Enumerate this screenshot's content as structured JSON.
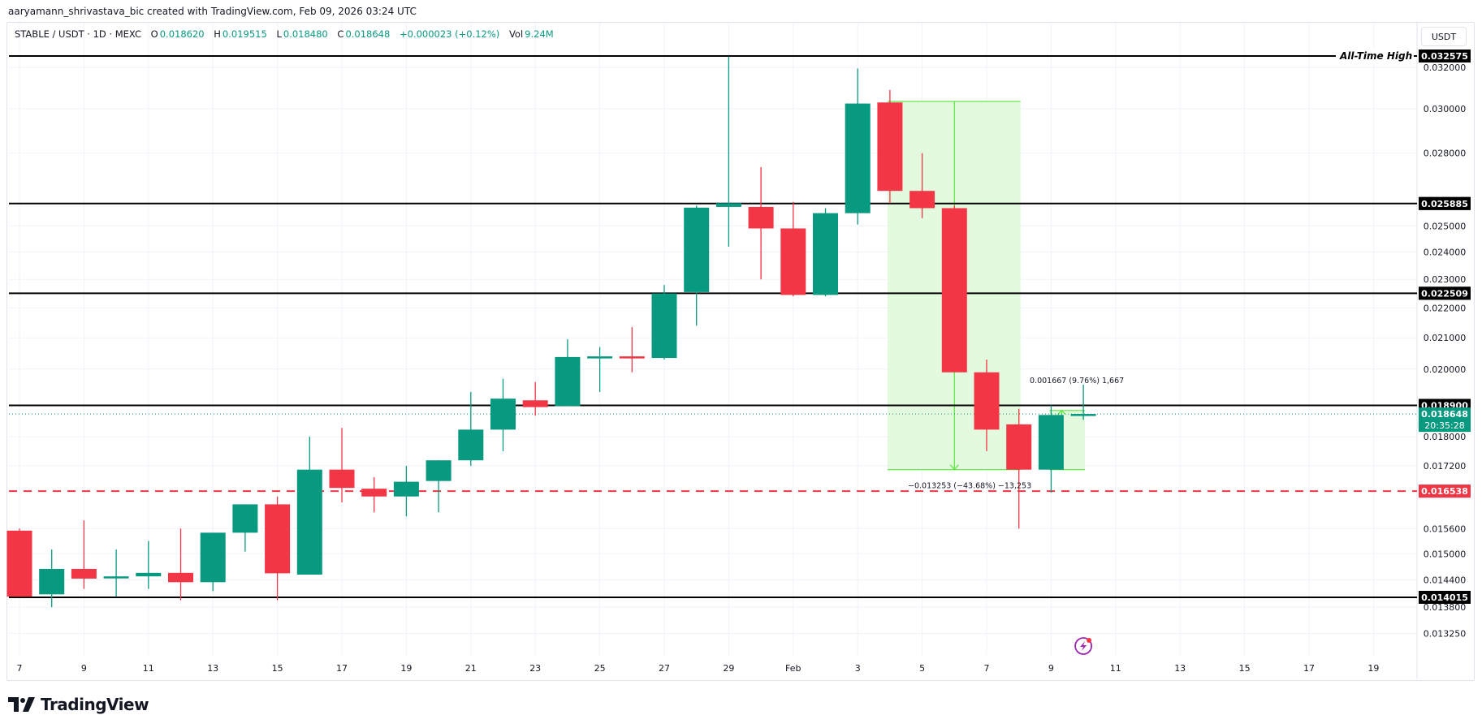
{
  "credit": "aaryamann_shrivastava_bic created with TradingView.com, Feb 09, 2026 03:24 UTC",
  "legend": {
    "symbol": "STABLE / USDT · 1D · MEXC",
    "o_label": "O",
    "o_value": "0.018620",
    "h_label": "H",
    "h_value": "0.019515",
    "l_label": "L",
    "l_value": "0.018480",
    "c_label": "C",
    "c_value": "0.018648",
    "change": "+0.000023 (+0.12%)",
    "vol_label": "Vol",
    "vol_value": "9.24M"
  },
  "price_axis": {
    "unit": "USDT",
    "ticks": [
      "0.032000",
      "0.030000",
      "0.028000",
      "0.025000",
      "0.024000",
      "0.023000",
      "0.022000",
      "0.021000",
      "0.020000",
      "0.018000",
      "0.017200",
      "0.015600",
      "0.015000",
      "0.014400",
      "0.013800",
      "0.013250"
    ]
  },
  "time_axis": {
    "ticks": [
      "7",
      "9",
      "11",
      "13",
      "15",
      "17",
      "19",
      "21",
      "23",
      "25",
      "27",
      "29",
      "Feb",
      "3",
      "5",
      "7",
      "9",
      "11",
      "13",
      "15",
      "17",
      "19"
    ]
  },
  "levels": [
    {
      "price": "0.032575",
      "label": "All-Time High",
      "style": "solid",
      "color": "#000000"
    },
    {
      "price": "0.025885",
      "style": "solid",
      "color": "#000000"
    },
    {
      "price": "0.022509",
      "style": "solid",
      "color": "#000000"
    },
    {
      "price": "0.018900",
      "style": "solid",
      "color": "#000000"
    },
    {
      "price": "0.016538",
      "style": "dashed",
      "color": "#f23645"
    },
    {
      "price": "0.014015",
      "style": "solid",
      "color": "#000000"
    }
  ],
  "last_price": {
    "price": "0.018648",
    "countdown": "20:35:28",
    "color": "#089981"
  },
  "measurements": [
    {
      "text": "−0.013253 (−43.68%) −13,253",
      "color": "#4ce02f"
    },
    {
      "text": "0.001667 (9.76%) 1,667",
      "color": "#4ce02f"
    }
  ],
  "brand": {
    "name": "TradingView"
  },
  "colors": {
    "up": "#089981",
    "down": "#f23645",
    "measure_fill": "#e1fadb",
    "measure_line": "#56e83a",
    "event_icon": "#9c27b0"
  },
  "chart_data": {
    "type": "candlestick",
    "title": "STABLE / USDT · 1D · MEXC",
    "xlabel": "",
    "ylabel": "USDT",
    "yscale": "log",
    "ylim": [
      0.0129,
      0.0335
    ],
    "x": [
      "Jan 7",
      "Jan 8",
      "Jan 9",
      "Jan 10",
      "Jan 11",
      "Jan 12",
      "Jan 13",
      "Jan 14",
      "Jan 15",
      "Jan 16",
      "Jan 17",
      "Jan 18",
      "Jan 19",
      "Jan 20",
      "Jan 21",
      "Jan 22",
      "Jan 23",
      "Jan 24",
      "Jan 25",
      "Jan 26",
      "Jan 27",
      "Jan 28",
      "Jan 29",
      "Jan 30",
      "Jan 31",
      "Feb 1",
      "Feb 2",
      "Feb 3",
      "Feb 4",
      "Feb 5",
      "Feb 6",
      "Feb 7",
      "Feb 8",
      "Feb 9"
    ],
    "candles": [
      {
        "o": 0.01555,
        "h": 0.0156,
        "l": 0.01403,
        "c": 0.01403
      },
      {
        "o": 0.01408,
        "h": 0.0151,
        "l": 0.0138,
        "c": 0.01465
      },
      {
        "o": 0.01465,
        "h": 0.0158,
        "l": 0.0142,
        "c": 0.01443
      },
      {
        "o": 0.01445,
        "h": 0.0151,
        "l": 0.01403,
        "c": 0.01448
      },
      {
        "o": 0.01448,
        "h": 0.0153,
        "l": 0.0142,
        "c": 0.01456
      },
      {
        "o": 0.01456,
        "h": 0.0156,
        "l": 0.01395,
        "c": 0.01435
      },
      {
        "o": 0.01435,
        "h": 0.0155,
        "l": 0.01415,
        "c": 0.0155
      },
      {
        "o": 0.0155,
        "h": 0.0162,
        "l": 0.01505,
        "c": 0.0162
      },
      {
        "o": 0.0162,
        "h": 0.0164,
        "l": 0.01395,
        "c": 0.01455
      },
      {
        "o": 0.01452,
        "h": 0.018,
        "l": 0.01452,
        "c": 0.0171
      },
      {
        "o": 0.0171,
        "h": 0.01825,
        "l": 0.01625,
        "c": 0.01662
      },
      {
        "o": 0.0166,
        "h": 0.0169,
        "l": 0.016,
        "c": 0.0164
      },
      {
        "o": 0.0164,
        "h": 0.0172,
        "l": 0.0159,
        "c": 0.01678
      },
      {
        "o": 0.0168,
        "h": 0.01735,
        "l": 0.016,
        "c": 0.01735
      },
      {
        "o": 0.01735,
        "h": 0.0193,
        "l": 0.0172,
        "c": 0.0182
      },
      {
        "o": 0.0182,
        "h": 0.0197,
        "l": 0.0176,
        "c": 0.0191
      },
      {
        "o": 0.01905,
        "h": 0.0196,
        "l": 0.0186,
        "c": 0.01885
      },
      {
        "o": 0.01888,
        "h": 0.02095,
        "l": 0.01888,
        "c": 0.02038
      },
      {
        "o": 0.02038,
        "h": 0.0207,
        "l": 0.0193,
        "c": 0.0204
      },
      {
        "o": 0.0204,
        "h": 0.02135,
        "l": 0.0199,
        "c": 0.02035
      },
      {
        "o": 0.02035,
        "h": 0.0228,
        "l": 0.0203,
        "c": 0.0225
      },
      {
        "o": 0.02255,
        "h": 0.0258,
        "l": 0.0214,
        "c": 0.02572
      },
      {
        "o": 0.02575,
        "h": 0.03255,
        "l": 0.0242,
        "c": 0.0259
      },
      {
        "o": 0.02575,
        "h": 0.0274,
        "l": 0.023,
        "c": 0.0249
      },
      {
        "o": 0.0249,
        "h": 0.02595,
        "l": 0.0224,
        "c": 0.02245
      },
      {
        "o": 0.02245,
        "h": 0.0257,
        "l": 0.0224,
        "c": 0.0255
      },
      {
        "o": 0.0255,
        "h": 0.03195,
        "l": 0.02505,
        "c": 0.03025
      },
      {
        "o": 0.0303,
        "h": 0.0309,
        "l": 0.0259,
        "c": 0.0264
      },
      {
        "o": 0.0264,
        "h": 0.028,
        "l": 0.0253,
        "c": 0.0257
      },
      {
        "o": 0.0257,
        "h": 0.0258,
        "l": 0.0199,
        "c": 0.0199
      },
      {
        "o": 0.0199,
        "h": 0.0203,
        "l": 0.0176,
        "c": 0.0182
      },
      {
        "o": 0.01835,
        "h": 0.0188,
        "l": 0.0156,
        "c": 0.0171
      },
      {
        "o": 0.0171,
        "h": 0.0189,
        "l": 0.0165,
        "c": 0.01862
      },
      {
        "o": 0.01862,
        "h": 0.01952,
        "l": 0.01848,
        "c": 0.01865
      }
    ],
    "horizontal_levels": [
      0.032575,
      0.025885,
      0.022509,
      0.0189,
      0.016538,
      0.014015
    ],
    "annotations": [
      "All-Time High",
      "−0.013253 (−43.68%) −13,253",
      "0.001667 (9.76%) 1,667"
    ]
  }
}
